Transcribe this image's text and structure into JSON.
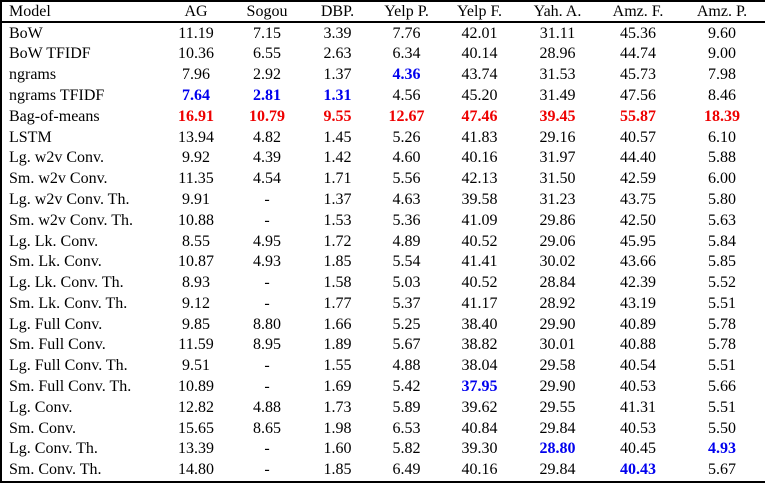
{
  "colors": {
    "best_value_blue": "#0000ee",
    "worst_value_red": "#ee0000",
    "text": "#000000",
    "background": "#ffffff",
    "border": "#000000"
  },
  "table": {
    "columns": [
      "Model",
      "AG",
      "Sogou",
      "DBP.",
      "Yelp P.",
      "Yelp F.",
      "Yah. A.",
      "Amz. F.",
      "Amz. P."
    ],
    "rows": [
      {
        "model": "BoW",
        "values": [
          "11.19",
          "7.15",
          "3.39",
          "7.76",
          "42.01",
          "31.11",
          "45.36",
          "9.60"
        ],
        "marks": [
          "",
          "",
          "",
          "",
          "",
          "",
          "",
          ""
        ]
      },
      {
        "model": "BoW TFIDF",
        "values": [
          "10.36",
          "6.55",
          "2.63",
          "6.34",
          "40.14",
          "28.96",
          "44.74",
          "9.00"
        ],
        "marks": [
          "",
          "",
          "",
          "",
          "",
          "",
          "",
          ""
        ]
      },
      {
        "model": "ngrams",
        "values": [
          "7.96",
          "2.92",
          "1.37",
          "4.36",
          "43.74",
          "31.53",
          "45.73",
          "7.98"
        ],
        "marks": [
          "",
          "",
          "",
          "blue",
          "",
          "",
          "",
          ""
        ]
      },
      {
        "model": "ngrams TFIDF",
        "values": [
          "7.64",
          "2.81",
          "1.31",
          "4.56",
          "45.20",
          "31.49",
          "47.56",
          "8.46"
        ],
        "marks": [
          "blue",
          "blue",
          "blue",
          "",
          "",
          "",
          "",
          ""
        ]
      },
      {
        "model": "Bag-of-means",
        "values": [
          "16.91",
          "10.79",
          "9.55",
          "12.67",
          "47.46",
          "39.45",
          "55.87",
          "18.39"
        ],
        "marks": [
          "red",
          "red",
          "red",
          "red",
          "red",
          "red",
          "red",
          "red"
        ]
      },
      {
        "model": "LSTM",
        "values": [
          "13.94",
          "4.82",
          "1.45",
          "5.26",
          "41.83",
          "29.16",
          "40.57",
          "6.10"
        ],
        "marks": [
          "",
          "",
          "",
          "",
          "",
          "",
          "",
          ""
        ]
      },
      {
        "model": "Lg. w2v Conv.",
        "values": [
          "9.92",
          "4.39",
          "1.42",
          "4.60",
          "40.16",
          "31.97",
          "44.40",
          "5.88"
        ],
        "marks": [
          "",
          "",
          "",
          "",
          "",
          "",
          "",
          ""
        ]
      },
      {
        "model": "Sm. w2v Conv.",
        "values": [
          "11.35",
          "4.54",
          "1.71",
          "5.56",
          "42.13",
          "31.50",
          "42.59",
          "6.00"
        ],
        "marks": [
          "",
          "",
          "",
          "",
          "",
          "",
          "",
          ""
        ]
      },
      {
        "model": "Lg. w2v Conv. Th.",
        "values": [
          "9.91",
          "-",
          "1.37",
          "4.63",
          "39.58",
          "31.23",
          "43.75",
          "5.80"
        ],
        "marks": [
          "",
          "",
          "",
          "",
          "",
          "",
          "",
          ""
        ]
      },
      {
        "model": "Sm. w2v Conv. Th.",
        "values": [
          "10.88",
          "-",
          "1.53",
          "5.36",
          "41.09",
          "29.86",
          "42.50",
          "5.63"
        ],
        "marks": [
          "",
          "",
          "",
          "",
          "",
          "",
          "",
          ""
        ]
      },
      {
        "model": "Lg. Lk. Conv.",
        "values": [
          "8.55",
          "4.95",
          "1.72",
          "4.89",
          "40.52",
          "29.06",
          "45.95",
          "5.84"
        ],
        "marks": [
          "",
          "",
          "",
          "",
          "",
          "",
          "",
          ""
        ]
      },
      {
        "model": "Sm. Lk. Conv.",
        "values": [
          "10.87",
          "4.93",
          "1.85",
          "5.54",
          "41.41",
          "30.02",
          "43.66",
          "5.85"
        ],
        "marks": [
          "",
          "",
          "",
          "",
          "",
          "",
          "",
          ""
        ]
      },
      {
        "model": "Lg. Lk. Conv. Th.",
        "values": [
          "8.93",
          "-",
          "1.58",
          "5.03",
          "40.52",
          "28.84",
          "42.39",
          "5.52"
        ],
        "marks": [
          "",
          "",
          "",
          "",
          "",
          "",
          "",
          ""
        ]
      },
      {
        "model": "Sm. Lk. Conv. Th.",
        "values": [
          "9.12",
          "-",
          "1.77",
          "5.37",
          "41.17",
          "28.92",
          "43.19",
          "5.51"
        ],
        "marks": [
          "",
          "",
          "",
          "",
          "",
          "",
          "",
          ""
        ]
      },
      {
        "model": "Lg. Full Conv.",
        "values": [
          "9.85",
          "8.80",
          "1.66",
          "5.25",
          "38.40",
          "29.90",
          "40.89",
          "5.78"
        ],
        "marks": [
          "",
          "",
          "",
          "",
          "",
          "",
          "",
          ""
        ]
      },
      {
        "model": "Sm. Full Conv.",
        "values": [
          "11.59",
          "8.95",
          "1.89",
          "5.67",
          "38.82",
          "30.01",
          "40.88",
          "5.78"
        ],
        "marks": [
          "",
          "",
          "",
          "",
          "",
          "",
          "",
          ""
        ]
      },
      {
        "model": "Lg. Full Conv. Th.",
        "values": [
          "9.51",
          "-",
          "1.55",
          "4.88",
          "38.04",
          "29.58",
          "40.54",
          "5.51"
        ],
        "marks": [
          "",
          "",
          "",
          "",
          "",
          "",
          "",
          ""
        ]
      },
      {
        "model": "Sm. Full Conv. Th.",
        "values": [
          "10.89",
          "-",
          "1.69",
          "5.42",
          "37.95",
          "29.90",
          "40.53",
          "5.66"
        ],
        "marks": [
          "",
          "",
          "",
          "",
          "blue",
          "",
          "",
          ""
        ]
      },
      {
        "model": "Lg. Conv.",
        "values": [
          "12.82",
          "4.88",
          "1.73",
          "5.89",
          "39.62",
          "29.55",
          "41.31",
          "5.51"
        ],
        "marks": [
          "",
          "",
          "",
          "",
          "",
          "",
          "",
          ""
        ]
      },
      {
        "model": "Sm. Conv.",
        "values": [
          "15.65",
          "8.65",
          "1.98",
          "6.53",
          "40.84",
          "29.84",
          "40.53",
          "5.50"
        ],
        "marks": [
          "",
          "",
          "",
          "",
          "",
          "",
          "",
          ""
        ]
      },
      {
        "model": "Lg. Conv. Th.",
        "values": [
          "13.39",
          "-",
          "1.60",
          "5.82",
          "39.30",
          "28.80",
          "40.45",
          "4.93"
        ],
        "marks": [
          "",
          "",
          "",
          "",
          "",
          "blue",
          "",
          "blue"
        ]
      },
      {
        "model": "Sm. Conv. Th.",
        "values": [
          "14.80",
          "-",
          "1.85",
          "6.49",
          "40.16",
          "29.84",
          "40.43",
          "5.67"
        ],
        "marks": [
          "",
          "",
          "",
          "",
          "",
          "",
          "blue",
          ""
        ]
      }
    ]
  }
}
